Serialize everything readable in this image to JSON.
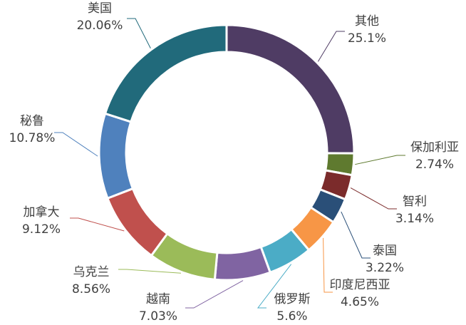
{
  "chart_data": {
    "type": "donut",
    "categories": [
      "其他",
      "保加利亚",
      "智利",
      "泰国",
      "印度尼西亚",
      "俄罗斯",
      "越南",
      "乌克兰",
      "加拿大",
      "秘鲁",
      "美国"
    ],
    "values": [
      25.1,
      2.74,
      3.14,
      3.22,
      4.65,
      5.6,
      7.03,
      8.56,
      9.12,
      10.78,
      20.06
    ],
    "value_labels": [
      "25.1%",
      "2.74%",
      "3.14%",
      "3.22%",
      "4.65%",
      "5.6%",
      "7.03%",
      "8.56%",
      "9.12%",
      "10.78%",
      "20.06%"
    ],
    "colors": [
      "#4f3c64",
      "#5f7a2f",
      "#7b2b2b",
      "#2a4f78",
      "#f79646",
      "#4bacc6",
      "#8064a2",
      "#9bbb59",
      "#c0504d",
      "#4f81bd",
      "#216a7b"
    ]
  }
}
